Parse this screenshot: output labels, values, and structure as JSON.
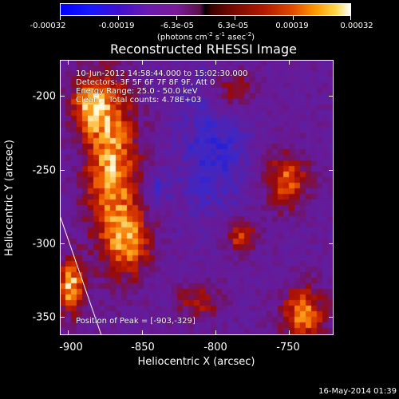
{
  "colorbar": {
    "tick_labels": [
      "-0.00032",
      "-0.00019",
      "-6.3e-05",
      "6.3e-05",
      "0.00019",
      "0.00032"
    ],
    "units_prefix": "(photons cm",
    "units_exp1": "-2",
    "units_mid1": " s",
    "units_exp2": "-1",
    "units_mid2": " asec",
    "units_exp3": "-2",
    "units_suffix": ")"
  },
  "title": "Reconstructed RHESSI Image",
  "info": {
    "time_range": "10-Jun-2012 14:58:44.000 to 15:02:30.000",
    "detectors": "Detectors: 3F 5F 6F 7F 8F 9F, Att 0",
    "energy": "Energy Range: 25.0 - 50.0 keV",
    "method": "Clean    Total counts: 4.78E+03",
    "peak": "Position of Peak = [-903,-329]"
  },
  "axes": {
    "xlabel": "Heliocentric X (arcsec)",
    "ylabel": "Heliocentric Y (arcsec)",
    "x_ticks": [
      "-900",
      "-850",
      "-800",
      "-750"
    ],
    "y_ticks": [
      "-200",
      "-250",
      "-300",
      "-350"
    ]
  },
  "footer": {
    "timestamp": "16-May-2014 01:39"
  },
  "colors": {
    "background": "#000000",
    "limb_line": "#ffffff"
  }
}
